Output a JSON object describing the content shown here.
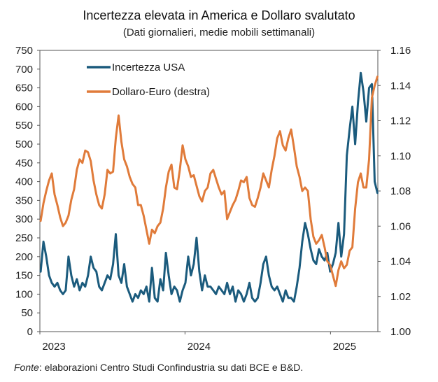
{
  "chart_data": {
    "type": "line",
    "title": "Incertezza elevata in America e Dollaro svalutato",
    "subtitle": "(Dati giornalieri, medie mobili settimanali)",
    "x_tick_labels": [
      "2023",
      "2024",
      "2025"
    ],
    "y_left": {
      "min": 0,
      "max": 750,
      "step": 50,
      "tick_labels": [
        "0",
        "50",
        "100",
        "150",
        "200",
        "250",
        "300",
        "350",
        "400",
        "450",
        "500",
        "550",
        "600",
        "650",
        "700",
        "750"
      ]
    },
    "y_right": {
      "min": 1.0,
      "max": 1.16,
      "step": 0.02,
      "tick_labels": [
        "1.00",
        "1.02",
        "1.04",
        "1.06",
        "1.08",
        "1.10",
        "1.12",
        "1.14",
        "1.16"
      ]
    },
    "legend": {
      "placement": "top-left"
    },
    "x_range": [
      "2023-01-01",
      "2025-04-30"
    ],
    "series": [
      {
        "name": "Incertezza USA",
        "axis": "left",
        "color": "#1b5b7d",
        "points": [
          [
            "2023-01-03",
            160
          ],
          [
            "2023-01-10",
            240
          ],
          [
            "2023-01-17",
            200
          ],
          [
            "2023-01-24",
            150
          ],
          [
            "2023-01-31",
            130
          ],
          [
            "2023-02-07",
            120
          ],
          [
            "2023-02-14",
            130
          ],
          [
            "2023-02-21",
            110
          ],
          [
            "2023-02-28",
            100
          ],
          [
            "2023-03-07",
            110
          ],
          [
            "2023-03-14",
            200
          ],
          [
            "2023-03-21",
            150
          ],
          [
            "2023-03-28",
            120
          ],
          [
            "2023-04-04",
            140
          ],
          [
            "2023-04-11",
            110
          ],
          [
            "2023-04-18",
            130
          ],
          [
            "2023-04-25",
            120
          ],
          [
            "2023-05-02",
            150
          ],
          [
            "2023-05-09",
            200
          ],
          [
            "2023-05-16",
            170
          ],
          [
            "2023-05-23",
            160
          ],
          [
            "2023-05-30",
            120
          ],
          [
            "2023-06-06",
            110
          ],
          [
            "2023-06-13",
            130
          ],
          [
            "2023-06-20",
            150
          ],
          [
            "2023-06-27",
            140
          ],
          [
            "2023-07-04",
            180
          ],
          [
            "2023-07-11",
            260
          ],
          [
            "2023-07-18",
            150
          ],
          [
            "2023-07-25",
            130
          ],
          [
            "2023-08-01",
            180
          ],
          [
            "2023-08-08",
            120
          ],
          [
            "2023-08-15",
            100
          ],
          [
            "2023-08-22",
            80
          ],
          [
            "2023-08-29",
            100
          ],
          [
            "2023-09-05",
            90
          ],
          [
            "2023-09-12",
            110
          ],
          [
            "2023-09-19",
            100
          ],
          [
            "2023-09-26",
            120
          ],
          [
            "2023-10-03",
            80
          ],
          [
            "2023-10-10",
            170
          ],
          [
            "2023-10-17",
            90
          ],
          [
            "2023-10-24",
            80
          ],
          [
            "2023-10-31",
            140
          ],
          [
            "2023-11-07",
            110
          ],
          [
            "2023-11-14",
            210
          ],
          [
            "2023-11-21",
            150
          ],
          [
            "2023-11-28",
            100
          ],
          [
            "2023-12-05",
            120
          ],
          [
            "2023-12-12",
            110
          ],
          [
            "2023-12-19",
            80
          ],
          [
            "2023-12-26",
            110
          ],
          [
            "2024-01-02",
            130
          ],
          [
            "2024-01-09",
            200
          ],
          [
            "2024-01-16",
            150
          ],
          [
            "2024-01-23",
            180
          ],
          [
            "2024-01-30",
            250
          ],
          [
            "2024-02-06",
            160
          ],
          [
            "2024-02-13",
            110
          ],
          [
            "2024-02-20",
            150
          ],
          [
            "2024-02-27",
            120
          ],
          [
            "2024-03-05",
            120
          ],
          [
            "2024-03-12",
            110
          ],
          [
            "2024-03-19",
            100
          ],
          [
            "2024-03-26",
            120
          ],
          [
            "2024-04-02",
            110
          ],
          [
            "2024-04-09",
            100
          ],
          [
            "2024-04-16",
            130
          ],
          [
            "2024-04-23",
            100
          ],
          [
            "2024-04-30",
            120
          ],
          [
            "2024-05-07",
            80
          ],
          [
            "2024-05-14",
            110
          ],
          [
            "2024-05-21",
            100
          ],
          [
            "2024-05-28",
            80
          ],
          [
            "2024-06-04",
            100
          ],
          [
            "2024-06-11",
            130
          ],
          [
            "2024-06-18",
            90
          ],
          [
            "2024-06-25",
            80
          ],
          [
            "2024-07-02",
            90
          ],
          [
            "2024-07-09",
            130
          ],
          [
            "2024-07-16",
            180
          ],
          [
            "2024-07-23",
            200
          ],
          [
            "2024-07-30",
            150
          ],
          [
            "2024-08-06",
            120
          ],
          [
            "2024-08-13",
            110
          ],
          [
            "2024-08-20",
            120
          ],
          [
            "2024-08-27",
            100
          ],
          [
            "2024-09-03",
            80
          ],
          [
            "2024-09-10",
            110
          ],
          [
            "2024-09-17",
            90
          ],
          [
            "2024-09-24",
            90
          ],
          [
            "2024-10-01",
            80
          ],
          [
            "2024-10-08",
            120
          ],
          [
            "2024-10-15",
            170
          ],
          [
            "2024-10-22",
            240
          ],
          [
            "2024-10-29",
            290
          ],
          [
            "2024-11-05",
            260
          ],
          [
            "2024-11-12",
            220
          ],
          [
            "2024-11-19",
            190
          ],
          [
            "2024-11-26",
            180
          ],
          [
            "2024-12-03",
            220
          ],
          [
            "2024-12-10",
            200
          ],
          [
            "2024-12-17",
            190
          ],
          [
            "2024-12-24",
            210
          ],
          [
            "2024-12-31",
            160
          ],
          [
            "2025-01-07",
            180
          ],
          [
            "2025-01-14",
            210
          ],
          [
            "2025-01-21",
            290
          ],
          [
            "2025-01-28",
            200
          ],
          [
            "2025-02-04",
            260
          ],
          [
            "2025-02-11",
            470
          ],
          [
            "2025-02-18",
            540
          ],
          [
            "2025-02-25",
            600
          ],
          [
            "2025-03-04",
            500
          ],
          [
            "2025-03-11",
            610
          ],
          [
            "2025-03-18",
            690
          ],
          [
            "2025-03-25",
            640
          ],
          [
            "2025-04-01",
            560
          ],
          [
            "2025-04-08",
            650
          ],
          [
            "2025-04-15",
            660
          ],
          [
            "2025-04-22",
            400
          ],
          [
            "2025-04-29",
            370
          ]
        ]
      },
      {
        "name": "Dollaro-Euro (destra)",
        "axis": "right",
        "color": "#e07b3a",
        "points": [
          [
            "2023-01-03",
            1.063
          ],
          [
            "2023-01-10",
            1.073
          ],
          [
            "2023-01-17",
            1.08
          ],
          [
            "2023-01-24",
            1.086
          ],
          [
            "2023-01-31",
            1.09
          ],
          [
            "2023-02-07",
            1.078
          ],
          [
            "2023-02-14",
            1.072
          ],
          [
            "2023-02-21",
            1.065
          ],
          [
            "2023-02-28",
            1.06
          ],
          [
            "2023-03-07",
            1.062
          ],
          [
            "2023-03-14",
            1.066
          ],
          [
            "2023-03-21",
            1.075
          ],
          [
            "2023-03-28",
            1.081
          ],
          [
            "2023-04-04",
            1.092
          ],
          [
            "2023-04-11",
            1.098
          ],
          [
            "2023-04-18",
            1.096
          ],
          [
            "2023-04-25",
            1.103
          ],
          [
            "2023-05-02",
            1.102
          ],
          [
            "2023-05-09",
            1.097
          ],
          [
            "2023-05-16",
            1.086
          ],
          [
            "2023-05-23",
            1.078
          ],
          [
            "2023-05-30",
            1.072
          ],
          [
            "2023-06-06",
            1.07
          ],
          [
            "2023-06-13",
            1.078
          ],
          [
            "2023-06-20",
            1.092
          ],
          [
            "2023-06-27",
            1.09
          ],
          [
            "2023-07-04",
            1.091
          ],
          [
            "2023-07-11",
            1.11
          ],
          [
            "2023-07-18",
            1.123
          ],
          [
            "2023-07-25",
            1.108
          ],
          [
            "2023-08-01",
            1.098
          ],
          [
            "2023-08-08",
            1.094
          ],
          [
            "2023-08-15",
            1.088
          ],
          [
            "2023-08-22",
            1.084
          ],
          [
            "2023-08-29",
            1.082
          ],
          [
            "2023-09-05",
            1.072
          ],
          [
            "2023-09-12",
            1.072
          ],
          [
            "2023-09-19",
            1.066
          ],
          [
            "2023-09-26",
            1.058
          ],
          [
            "2023-10-03",
            1.05
          ],
          [
            "2023-10-10",
            1.058
          ],
          [
            "2023-10-17",
            1.056
          ],
          [
            "2023-10-24",
            1.06
          ],
          [
            "2023-10-31",
            1.062
          ],
          [
            "2023-11-07",
            1.07
          ],
          [
            "2023-11-14",
            1.082
          ],
          [
            "2023-11-21",
            1.091
          ],
          [
            "2023-11-28",
            1.095
          ],
          [
            "2023-12-05",
            1.082
          ],
          [
            "2023-12-12",
            1.081
          ],
          [
            "2023-12-19",
            1.092
          ],
          [
            "2023-12-26",
            1.106
          ],
          [
            "2024-01-02",
            1.098
          ],
          [
            "2024-01-09",
            1.094
          ],
          [
            "2024-01-16",
            1.088
          ],
          [
            "2024-01-23",
            1.089
          ],
          [
            "2024-01-30",
            1.083
          ],
          [
            "2024-02-06",
            1.077
          ],
          [
            "2024-02-13",
            1.074
          ],
          [
            "2024-02-20",
            1.08
          ],
          [
            "2024-02-27",
            1.082
          ],
          [
            "2024-03-05",
            1.09
          ],
          [
            "2024-03-12",
            1.092
          ],
          [
            "2024-03-19",
            1.087
          ],
          [
            "2024-03-26",
            1.082
          ],
          [
            "2024-04-02",
            1.078
          ],
          [
            "2024-04-09",
            1.08
          ],
          [
            "2024-04-16",
            1.064
          ],
          [
            "2024-04-23",
            1.068
          ],
          [
            "2024-04-30",
            1.072
          ],
          [
            "2024-05-07",
            1.075
          ],
          [
            "2024-05-14",
            1.08
          ],
          [
            "2024-05-21",
            1.086
          ],
          [
            "2024-05-28",
            1.085
          ],
          [
            "2024-06-04",
            1.088
          ],
          [
            "2024-06-11",
            1.076
          ],
          [
            "2024-06-18",
            1.072
          ],
          [
            "2024-06-25",
            1.071
          ],
          [
            "2024-07-02",
            1.076
          ],
          [
            "2024-07-09",
            1.082
          ],
          [
            "2024-07-16",
            1.09
          ],
          [
            "2024-07-23",
            1.086
          ],
          [
            "2024-07-30",
            1.082
          ],
          [
            "2024-08-06",
            1.092
          ],
          [
            "2024-08-13",
            1.1
          ],
          [
            "2024-08-20",
            1.11
          ],
          [
            "2024-08-27",
            1.114
          ],
          [
            "2024-09-03",
            1.106
          ],
          [
            "2024-09-10",
            1.103
          ],
          [
            "2024-09-17",
            1.11
          ],
          [
            "2024-09-24",
            1.115
          ],
          [
            "2024-10-01",
            1.105
          ],
          [
            "2024-10-08",
            1.094
          ],
          [
            "2024-10-15",
            1.088
          ],
          [
            "2024-10-22",
            1.08
          ],
          [
            "2024-10-29",
            1.082
          ],
          [
            "2024-11-05",
            1.08
          ],
          [
            "2024-11-12",
            1.064
          ],
          [
            "2024-11-19",
            1.054
          ],
          [
            "2024-11-26",
            1.05
          ],
          [
            "2024-12-03",
            1.052
          ],
          [
            "2024-12-10",
            1.055
          ],
          [
            "2024-12-17",
            1.048
          ],
          [
            "2024-12-24",
            1.04
          ],
          [
            "2024-12-31",
            1.038
          ],
          [
            "2025-01-07",
            1.032
          ],
          [
            "2025-01-14",
            1.026
          ],
          [
            "2025-01-21",
            1.035
          ],
          [
            "2025-01-28",
            1.04
          ],
          [
            "2025-02-04",
            1.036
          ],
          [
            "2025-02-11",
            1.038
          ],
          [
            "2025-02-18",
            1.046
          ],
          [
            "2025-02-25",
            1.048
          ],
          [
            "2025-03-04",
            1.07
          ],
          [
            "2025-03-11",
            1.085
          ],
          [
            "2025-03-18",
            1.09
          ],
          [
            "2025-03-25",
            1.082
          ],
          [
            "2025-04-01",
            1.082
          ],
          [
            "2025-04-08",
            1.098
          ],
          [
            "2025-04-15",
            1.133
          ],
          [
            "2025-04-22",
            1.14
          ],
          [
            "2025-04-29",
            1.145
          ]
        ]
      }
    ]
  },
  "source": {
    "label": "Fonte",
    "text": ": elaborazioni Centro Studi Confindustria su dati BCE e B&D."
  }
}
